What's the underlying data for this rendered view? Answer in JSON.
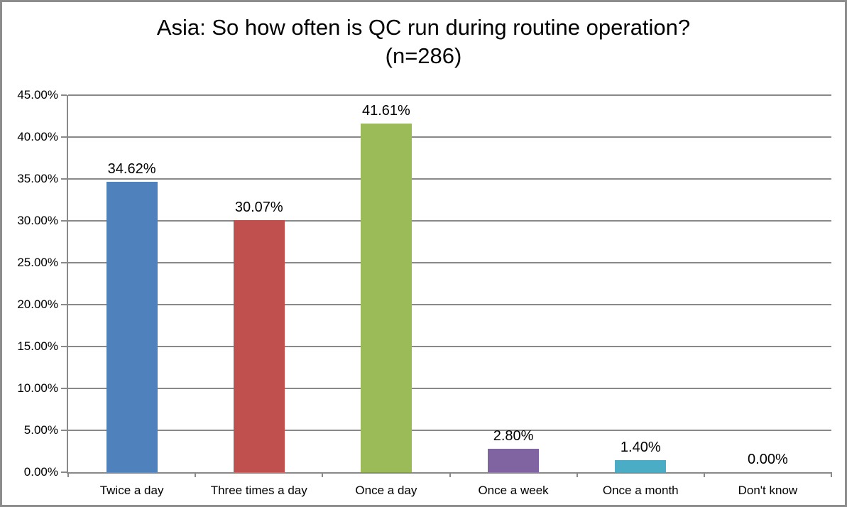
{
  "frame": {
    "border_color": "#8c8c8c",
    "background": "#ffffff"
  },
  "chart_data": {
    "type": "bar",
    "title": "Asia: So how often is QC run during routine operation?",
    "subtitle": "(n=286)",
    "categories": [
      "Twice a day",
      "Three times a day",
      "Once a day",
      "Once a week",
      "Once a month",
      "Don't know"
    ],
    "values": [
      34.62,
      30.07,
      41.61,
      2.8,
      1.4,
      0.0
    ],
    "data_labels": [
      "34.62%",
      "30.07%",
      "41.61%",
      "2.80%",
      "1.40%",
      "0.00%"
    ],
    "bar_colors": [
      "#4f81bd",
      "#c0504d",
      "#9bbb59",
      "#8064a2",
      "#4bacc6",
      "#f79646"
    ],
    "xlabel": "",
    "ylabel": "",
    "ylim": [
      0,
      45
    ],
    "ytick_step": 5,
    "ytick_labels": [
      "0.00%",
      "5.00%",
      "10.00%",
      "15.00%",
      "20.00%",
      "25.00%",
      "30.00%",
      "35.00%",
      "40.00%",
      "45.00%"
    ],
    "grid": "horizontal-on",
    "gridline_color": "#898989",
    "axis_color": "#898989",
    "text_color": "#000000",
    "legend": "none"
  }
}
